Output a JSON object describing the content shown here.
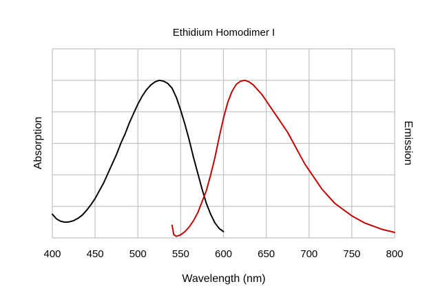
{
  "chart_data": {
    "type": "line",
    "title": "Ethidium Homodimer I",
    "xlabel": "Wavelength (nm)",
    "ylabel_left": "Absorption",
    "ylabel_right": "Emission",
    "xlim": [
      400,
      800
    ],
    "ylim": [
      0,
      1.1
    ],
    "x_ticks": [
      400,
      450,
      500,
      550,
      600,
      650,
      700,
      750,
      800
    ],
    "y_gridlines": [
      0,
      0.2,
      0.4,
      0.6,
      0.8,
      1.0,
      1.2
    ],
    "grid": true,
    "legend": "none",
    "series": [
      {
        "color": "#000000",
        "points": [
          [
            400,
            0.15
          ],
          [
            405,
            0.12
          ],
          [
            410,
            0.105
          ],
          [
            415,
            0.1
          ],
          [
            420,
            0.102
          ],
          [
            425,
            0.11
          ],
          [
            430,
            0.125
          ],
          [
            435,
            0.145
          ],
          [
            440,
            0.175
          ],
          [
            445,
            0.21
          ],
          [
            450,
            0.25
          ],
          [
            455,
            0.3
          ],
          [
            460,
            0.35
          ],
          [
            465,
            0.41
          ],
          [
            470,
            0.47
          ],
          [
            475,
            0.53
          ],
          [
            480,
            0.6
          ],
          [
            485,
            0.66
          ],
          [
            490,
            0.73
          ],
          [
            495,
            0.79
          ],
          [
            500,
            0.85
          ],
          [
            505,
            0.9
          ],
          [
            510,
            0.94
          ],
          [
            515,
            0.97
          ],
          [
            520,
            0.99
          ],
          [
            525,
            1.0
          ],
          [
            530,
            0.995
          ],
          [
            535,
            0.98
          ],
          [
            540,
            0.95
          ],
          [
            545,
            0.89
          ],
          [
            550,
            0.81
          ],
          [
            555,
            0.72
          ],
          [
            560,
            0.62
          ],
          [
            565,
            0.51
          ],
          [
            570,
            0.41
          ],
          [
            575,
            0.31
          ],
          [
            580,
            0.22
          ],
          [
            585,
            0.15
          ],
          [
            590,
            0.095
          ],
          [
            595,
            0.06
          ],
          [
            600,
            0.04
          ]
        ]
      },
      {
        "color": "#c00000",
        "points": [
          [
            540,
            0.08
          ],
          [
            542,
            0.02
          ],
          [
            545,
            0.01
          ],
          [
            550,
            0.02
          ],
          [
            555,
            0.04
          ],
          [
            560,
            0.07
          ],
          [
            565,
            0.11
          ],
          [
            570,
            0.16
          ],
          [
            575,
            0.23
          ],
          [
            580,
            0.3
          ],
          [
            585,
            0.4
          ],
          [
            590,
            0.51
          ],
          [
            595,
            0.64
          ],
          [
            600,
            0.76
          ],
          [
            605,
            0.86
          ],
          [
            610,
            0.93
          ],
          [
            615,
            0.975
          ],
          [
            620,
            0.995
          ],
          [
            625,
            1.0
          ],
          [
            630,
            0.99
          ],
          [
            635,
            0.97
          ],
          [
            640,
            0.94
          ],
          [
            645,
            0.91
          ],
          [
            650,
            0.87
          ],
          [
            655,
            0.83
          ],
          [
            660,
            0.79
          ],
          [
            665,
            0.75
          ],
          [
            670,
            0.71
          ],
          [
            675,
            0.67
          ],
          [
            680,
            0.62
          ],
          [
            685,
            0.57
          ],
          [
            690,
            0.52
          ],
          [
            695,
            0.47
          ],
          [
            700,
            0.43
          ],
          [
            705,
            0.39
          ],
          [
            710,
            0.35
          ],
          [
            715,
            0.31
          ],
          [
            720,
            0.28
          ],
          [
            725,
            0.25
          ],
          [
            730,
            0.22
          ],
          [
            735,
            0.2
          ],
          [
            740,
            0.18
          ],
          [
            745,
            0.16
          ],
          [
            750,
            0.14
          ],
          [
            755,
            0.125
          ],
          [
            760,
            0.11
          ],
          [
            765,
            0.095
          ],
          [
            770,
            0.085
          ],
          [
            775,
            0.075
          ],
          [
            780,
            0.065
          ],
          [
            785,
            0.055
          ],
          [
            790,
            0.048
          ],
          [
            795,
            0.042
          ],
          [
            800,
            0.035
          ]
        ]
      }
    ]
  }
}
